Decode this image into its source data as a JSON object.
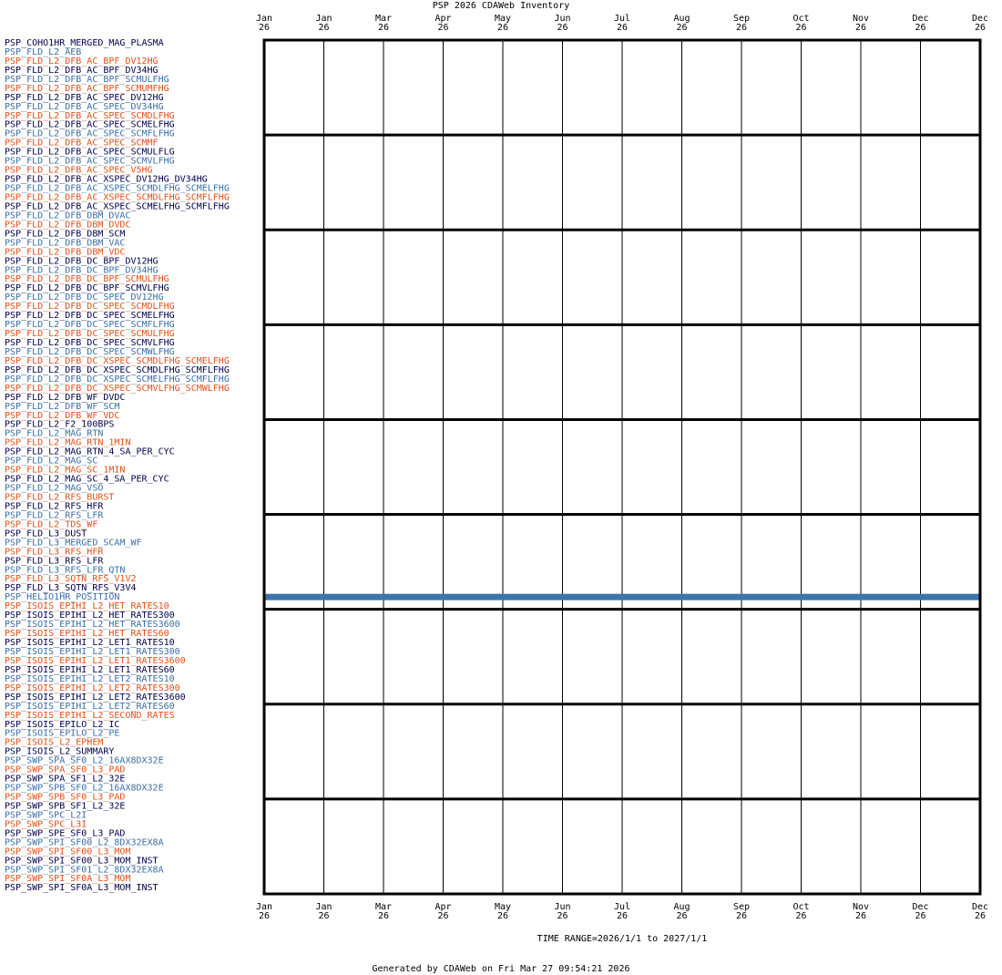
{
  "chart_data": {
    "type": "inventory",
    "title": "PSP 2026 CDAWeb Inventory",
    "xlabel": "TIME RANGE=2026/1/1 to 2027/1/1",
    "footer": "Generated by CDAWeb on Fri Mar 27 09:54:21 2026",
    "xlim": [
      "2026-01",
      "2027-01"
    ],
    "xticks": [
      {
        "value": "2026-01",
        "label": "Jan\n26"
      },
      {
        "value": "2026-02",
        "label": "Jan\n26"
      },
      {
        "value": "2026-03",
        "label": "Mar\n26"
      },
      {
        "value": "2026-04",
        "label": "Apr\n26"
      },
      {
        "value": "2026-05",
        "label": "May\n26"
      },
      {
        "value": "2026-06",
        "label": "Jun\n26"
      },
      {
        "value": "2026-07",
        "label": "Jul\n26"
      },
      {
        "value": "2026-08",
        "label": "Aug\n26"
      },
      {
        "value": "2026-09",
        "label": "Sep\n26"
      },
      {
        "value": "2026-10",
        "label": "Oct\n26"
      },
      {
        "value": "2026-11",
        "label": "Nov\n26"
      },
      {
        "value": "2026-12",
        "label": "Dec\n26"
      },
      {
        "value": "2027-01",
        "label": "Dec\n26"
      }
    ],
    "palette": [
      "#00004a",
      "#3a6ea5",
      "#e0501a"
    ],
    "bar_color": "#3a76ad",
    "series": [
      {
        "name": "PSP_COHO1HR_MERGED_MAG_PLASMA"
      },
      {
        "name": "PSP_FLD_L2_AEB"
      },
      {
        "name": "PSP_FLD_L2_DFB_AC_BPF_DV12HG"
      },
      {
        "name": "PSP_FLD_L2_DFB_AC_BPF_DV34HG"
      },
      {
        "name": "PSP_FLD_L2_DFB_AC_BPF_SCMULFHG"
      },
      {
        "name": "PSP_FLD_L2_DFB_AC_BPF_SCMUMFHG"
      },
      {
        "name": "PSP_FLD_L2_DFB_AC_SPEC_DV12HG"
      },
      {
        "name": "PSP_FLD_L2_DFB_AC_SPEC_DV34HG"
      },
      {
        "name": "PSP_FLD_L2_DFB_AC_SPEC_SCMDLFHG"
      },
      {
        "name": "PSP_FLD_L2_DFB_AC_SPEC_SCMELFHG"
      },
      {
        "name": "PSP_FLD_L2_DFB_AC_SPEC_SCMFLFHG"
      },
      {
        "name": "PSP_FLD_L2_DFB_AC_SPEC_SCMMF"
      },
      {
        "name": "PSP_FLD_L2_DFB_AC_SPEC_SCMULFLG"
      },
      {
        "name": "PSP_FLD_L2_DFB_AC_SPEC_SCMVLFHG"
      },
      {
        "name": "PSP_FLD_L2_DFB_AC_SPEC_V5HG"
      },
      {
        "name": "PSP_FLD_L2_DFB_AC_XSPEC_DV12HG_DV34HG"
      },
      {
        "name": "PSP_FLD_L2_DFB_AC_XSPEC_SCMDLFHG_SCMELFHG"
      },
      {
        "name": "PSP_FLD_L2_DFB_AC_XSPEC_SCMDLFHG_SCMFLFHG"
      },
      {
        "name": "PSP_FLD_L2_DFB_AC_XSPEC_SCMELFHG_SCMFLFHG"
      },
      {
        "name": "PSP_FLD_L2_DFB_DBM_DVAC"
      },
      {
        "name": "PSP_FLD_L2_DFB_DBM_DVDC"
      },
      {
        "name": "PSP_FLD_L2_DFB_DBM_SCM"
      },
      {
        "name": "PSP_FLD_L2_DFB_DBM_VAC"
      },
      {
        "name": "PSP_FLD_L2_DFB_DBM_VDC"
      },
      {
        "name": "PSP_FLD_L2_DFB_DC_BPF_DV12HG"
      },
      {
        "name": "PSP_FLD_L2_DFB_DC_BPF_DV34HG"
      },
      {
        "name": "PSP_FLD_L2_DFB_DC_BPF_SCMULFHG"
      },
      {
        "name": "PSP_FLD_L2_DFB_DC_BPF_SCMVLFHG"
      },
      {
        "name": "PSP_FLD_L2_DFB_DC_SPEC_DV12HG"
      },
      {
        "name": "PSP_FLD_L2_DFB_DC_SPEC_SCMDLFHG"
      },
      {
        "name": "PSP_FLD_L2_DFB_DC_SPEC_SCMELFHG"
      },
      {
        "name": "PSP_FLD_L2_DFB_DC_SPEC_SCMFLFHG"
      },
      {
        "name": "PSP_FLD_L2_DFB_DC_SPEC_SCMULFHG"
      },
      {
        "name": "PSP_FLD_L2_DFB_DC_SPEC_SCMVLFHG"
      },
      {
        "name": "PSP_FLD_L2_DFB_DC_SPEC_SCMWLFHG"
      },
      {
        "name": "PSP_FLD_L2_DFB_DC_XSPEC_SCMDLFHG_SCMELFHG"
      },
      {
        "name": "PSP_FLD_L2_DFB_DC_XSPEC_SCMDLFHG_SCMFLFHG"
      },
      {
        "name": "PSP_FLD_L2_DFB_DC_XSPEC_SCMELFHG_SCMFLFHG"
      },
      {
        "name": "PSP_FLD_L2_DFB_DC_XSPEC_SCMVLFHG_SCMWLFHG"
      },
      {
        "name": "PSP_FLD_L2_DFB_WF_DVDC"
      },
      {
        "name": "PSP_FLD_L2_DFB_WF_SCM"
      },
      {
        "name": "PSP_FLD_L2_DFB_WF_VDC"
      },
      {
        "name": "PSP_FLD_L2_F2_100BPS"
      },
      {
        "name": "PSP_FLD_L2_MAG_RTN"
      },
      {
        "name": "PSP_FLD_L2_MAG_RTN_1MIN"
      },
      {
        "name": "PSP_FLD_L2_MAG_RTN_4_SA_PER_CYC"
      },
      {
        "name": "PSP_FLD_L2_MAG_SC"
      },
      {
        "name": "PSP_FLD_L2_MAG_SC_1MIN"
      },
      {
        "name": "PSP_FLD_L2_MAG_SC_4_SA_PER_CYC"
      },
      {
        "name": "PSP_FLD_L2_MAG_VSO"
      },
      {
        "name": "PSP_FLD_L2_RFS_BURST"
      },
      {
        "name": "PSP_FLD_L2_RFS_HFR"
      },
      {
        "name": "PSP_FLD_L2_RFS_LFR"
      },
      {
        "name": "PSP_FLD_L2_TDS_WF"
      },
      {
        "name": "PSP_FLD_L3_DUST"
      },
      {
        "name": "PSP_FLD_L3_MERGED_SCAM_WF"
      },
      {
        "name": "PSP_FLD_L3_RFS_HFR"
      },
      {
        "name": "PSP_FLD_L3_RFS_LFR"
      },
      {
        "name": "PSP_FLD_L3_RFS_LFR_QTN"
      },
      {
        "name": "PSP_FLD_L3_SQTN_RFS_V1V2"
      },
      {
        "name": "PSP_FLD_L3_SQTN_RFS_V3V4"
      },
      {
        "name": "PSP_HELIO1HR_POSITION",
        "ranges": [
          [
            "2026-01",
            "2027-01"
          ]
        ]
      },
      {
        "name": "PSP_ISOIS_EPIHI_L2_HET_RATES10"
      },
      {
        "name": "PSP_ISOIS_EPIHI_L2_HET_RATES300"
      },
      {
        "name": "PSP_ISOIS_EPIHI_L2_HET_RATES3600"
      },
      {
        "name": "PSP_ISOIS_EPIHI_L2_HET_RATES60"
      },
      {
        "name": "PSP_ISOIS_EPIHI_L2_LET1_RATES10"
      },
      {
        "name": "PSP_ISOIS_EPIHI_L2_LET1_RATES300"
      },
      {
        "name": "PSP_ISOIS_EPIHI_L2_LET1_RATES3600"
      },
      {
        "name": "PSP_ISOIS_EPIHI_L2_LET1_RATES60"
      },
      {
        "name": "PSP_ISOIS_EPIHI_L2_LET2_RATES10"
      },
      {
        "name": "PSP_ISOIS_EPIHI_L2_LET2_RATES300"
      },
      {
        "name": "PSP_ISOIS_EPIHI_L2_LET2_RATES3600"
      },
      {
        "name": "PSP_ISOIS_EPIHI_L2_LET2_RATES60"
      },
      {
        "name": "PSP_ISOIS_EPIHI_L2_SECOND_RATES"
      },
      {
        "name": "PSP_ISOIS_EPILO_L2_IC"
      },
      {
        "name": "PSP_ISOIS_EPILO_L2_PE"
      },
      {
        "name": "PSP_ISOIS_L2_EPHEM"
      },
      {
        "name": "PSP_ISOIS_L2_SUMMARY"
      },
      {
        "name": "PSP_SWP_SPA_SF0_L2_16AX8DX32E"
      },
      {
        "name": "PSP_SWP_SPA_SF0_L3_PAD"
      },
      {
        "name": "PSP_SWP_SPA_SF1_L2_32E"
      },
      {
        "name": "PSP_SWP_SPB_SF0_L2_16AX8DX32E"
      },
      {
        "name": "PSP_SWP_SPB_SF0_L3_PAD"
      },
      {
        "name": "PSP_SWP_SPB_SF1_L2_32E"
      },
      {
        "name": "PSP_SWP_SPC_L2I"
      },
      {
        "name": "PSP_SWP_SPC_L3I"
      },
      {
        "name": "PSP_SWP_SPE_SF0_L3_PAD"
      },
      {
        "name": "PSP_SWP_SPI_SF00_L2_8DX32EX8A"
      },
      {
        "name": "PSP_SWP_SPI_SF00_L3_MOM"
      },
      {
        "name": "PSP_SWP_SPI_SF00_L3_MOM_INST"
      },
      {
        "name": "PSP_SWP_SPI_SF01_L2_8DX32EX8A"
      },
      {
        "name": "PSP_SWP_SPI_SF0A_L3_MOM"
      },
      {
        "name": "PSP_SWP_SPI_SF0A_L3_MOM_INST"
      }
    ]
  }
}
